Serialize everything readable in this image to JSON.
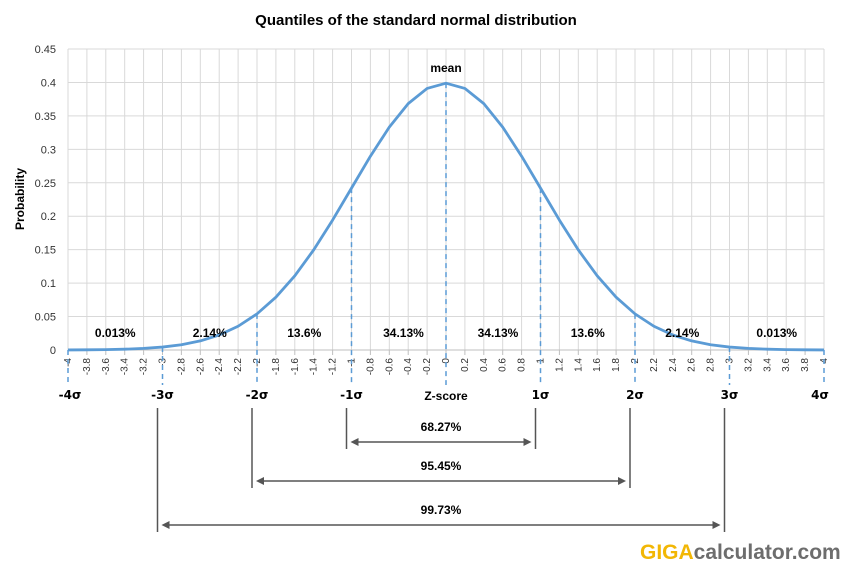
{
  "chart_data": {
    "type": "line",
    "title": "Quantiles of the standard normal distribution",
    "xlabel": "Z-score",
    "ylabel": "Probability",
    "xlim": [
      -4,
      4
    ],
    "ylim": [
      0,
      0.45
    ],
    "grid": true,
    "y_ticks": [
      "0",
      "0.05",
      "0.1",
      "0.15",
      "0.2",
      "0.25",
      "0.3",
      "0.35",
      "0.4",
      "0.45"
    ],
    "x_ticks": [
      "-4",
      "-3.8",
      "-3.6",
      "-3.4",
      "-3.2",
      "-3",
      "-2.8",
      "-2.6",
      "-2.4",
      "-2.2",
      "-2",
      "-1.8",
      "-1.6",
      "-1.4",
      "-1.2",
      "-1",
      "-0.8",
      "-0.6",
      "-0.4",
      "-0.2",
      "0",
      "0.2",
      "0.4",
      "0.6",
      "0.8",
      "1",
      "1.2",
      "1.4",
      "1.6",
      "1.8",
      "2",
      "2.2",
      "2.4",
      "2.6",
      "2.8",
      "3",
      "3.2",
      "3.4",
      "3.6",
      "3.8",
      "4"
    ],
    "series": [
      {
        "color": "#5b9bd5",
        "x": [
          -4,
          -3.8,
          -3.6,
          -3.4,
          -3.2,
          -3,
          -2.8,
          -2.6,
          -2.4,
          -2.2,
          -2,
          -1.8,
          -1.6,
          -1.4,
          -1.2,
          -1,
          -0.8,
          -0.6,
          -0.4,
          -0.2,
          0,
          0.2,
          0.4,
          0.6,
          0.8,
          1,
          1.2,
          1.4,
          1.6,
          1.8,
          2,
          2.2,
          2.4,
          2.6,
          2.8,
          3,
          3.2,
          3.4,
          3.6,
          3.8,
          4
        ],
        "y": [
          0.0001,
          0.0003,
          0.0006,
          0.0012,
          0.0024,
          0.0044,
          0.0079,
          0.0136,
          0.0224,
          0.0355,
          0.054,
          0.079,
          0.1109,
          0.1497,
          0.1942,
          0.242,
          0.2897,
          0.3332,
          0.3683,
          0.391,
          0.3989,
          0.391,
          0.3683,
          0.3332,
          0.2897,
          0.242,
          0.1942,
          0.1497,
          0.1109,
          0.079,
          0.054,
          0.0355,
          0.0224,
          0.0136,
          0.0079,
          0.0044,
          0.0024,
          0.0012,
          0.0006,
          0.0003,
          0.0001
        ]
      }
    ],
    "mean_label": "mean",
    "sigma_lines": [
      {
        "x": -3,
        "y": 0.0044
      },
      {
        "x": -2,
        "y": 0.054
      },
      {
        "x": -1,
        "y": 0.242
      },
      {
        "x": 0,
        "y": 0.3989
      },
      {
        "x": 1,
        "y": 0.242
      },
      {
        "x": 2,
        "y": 0.054
      },
      {
        "x": 3,
        "y": 0.0044
      }
    ],
    "region_labels": [
      {
        "text": "0.013%",
        "x": -3.5
      },
      {
        "text": "2.14%",
        "x": -2.5
      },
      {
        "text": "13.6%",
        "x": -1.5
      },
      {
        "text": "34.13%",
        "x": -0.45
      },
      {
        "text": "34.13%",
        "x": 0.55
      },
      {
        "text": "13.6%",
        "x": 1.5
      },
      {
        "text": "2.14%",
        "x": 2.5
      },
      {
        "text": "0.013%",
        "x": 3.5
      }
    ],
    "sigma_labels": [
      {
        "text": "-4σ",
        "x": -4
      },
      {
        "text": "-3σ",
        "x": -3
      },
      {
        "text": "-2σ",
        "x": -2
      },
      {
        "text": "-1σ",
        "x": -1
      },
      {
        "text": "1σ",
        "x": 1
      },
      {
        "text": "2σ",
        "x": 2
      },
      {
        "text": "3σ",
        "x": 3
      },
      {
        "text": "4σ",
        "x": 4
      }
    ],
    "ranges": [
      {
        "text": "68.27%",
        "from": -1,
        "to": 1
      },
      {
        "text": "95.45%",
        "from": -2,
        "to": 2
      },
      {
        "text": "99.73%",
        "from": -3,
        "to": 3
      }
    ]
  },
  "logo": {
    "part1": "GIGA",
    "part2": "calculator.com"
  },
  "colors": {
    "curve": "#5b9bd5",
    "grid": "#d9d9d9",
    "logo_accent": "#f2b705",
    "logo_text": "#6d6d6d"
  }
}
